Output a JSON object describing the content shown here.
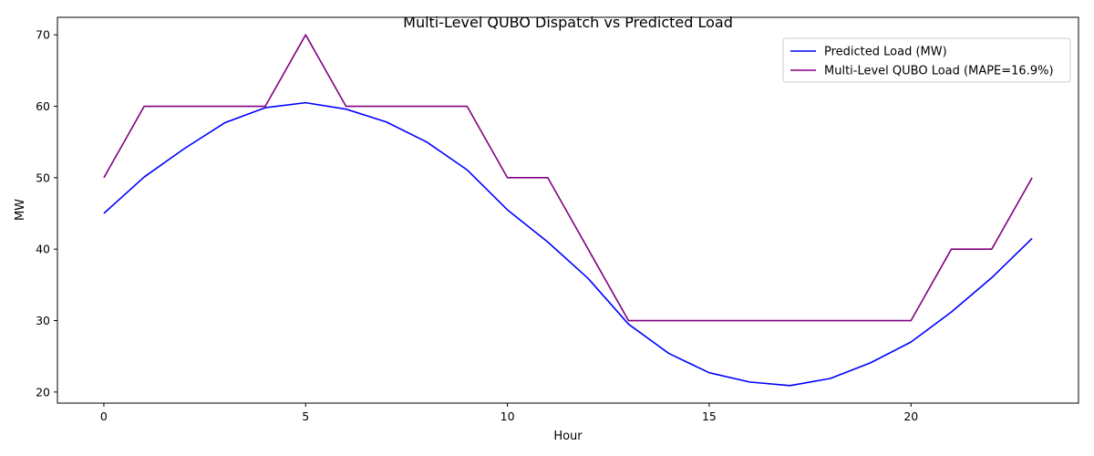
{
  "chart_data": {
    "type": "line",
    "title": "Multi-Level QUBO Dispatch vs Predicted Load",
    "xlabel": "Hour",
    "ylabel": "MW",
    "xlim": [
      -1.15,
      24.15
    ],
    "ylim": [
      18.45,
      72.45
    ],
    "xticks": [
      0,
      5,
      10,
      15,
      20
    ],
    "yticks": [
      20,
      30,
      40,
      50,
      60,
      70
    ],
    "grid": false,
    "legend": "top-right",
    "x": [
      0,
      1,
      2,
      3,
      4,
      5,
      6,
      7,
      8,
      9,
      10,
      11,
      12,
      13,
      14,
      15,
      16,
      17,
      18,
      19,
      20,
      21,
      22,
      23
    ],
    "series": [
      {
        "name": "Predicted Load (MW)",
        "color": "#0000ff",
        "values": [
          45.0,
          50.1,
          54.1,
          57.7,
          59.8,
          60.5,
          59.6,
          57.8,
          55.0,
          51.1,
          45.5,
          41.0,
          35.9,
          29.5,
          25.4,
          22.7,
          21.4,
          20.9,
          21.9,
          24.1,
          27.0,
          31.2,
          36.0,
          41.5
        ]
      },
      {
        "name": "Multi-Level QUBO Load (MAPE=16.9%)",
        "color": "#800080",
        "values": [
          50,
          60,
          60,
          60,
          60,
          70,
          60,
          60,
          60,
          60,
          50,
          50,
          40,
          30,
          30,
          30,
          30,
          30,
          30,
          30,
          30,
          40,
          40,
          50
        ]
      }
    ]
  }
}
